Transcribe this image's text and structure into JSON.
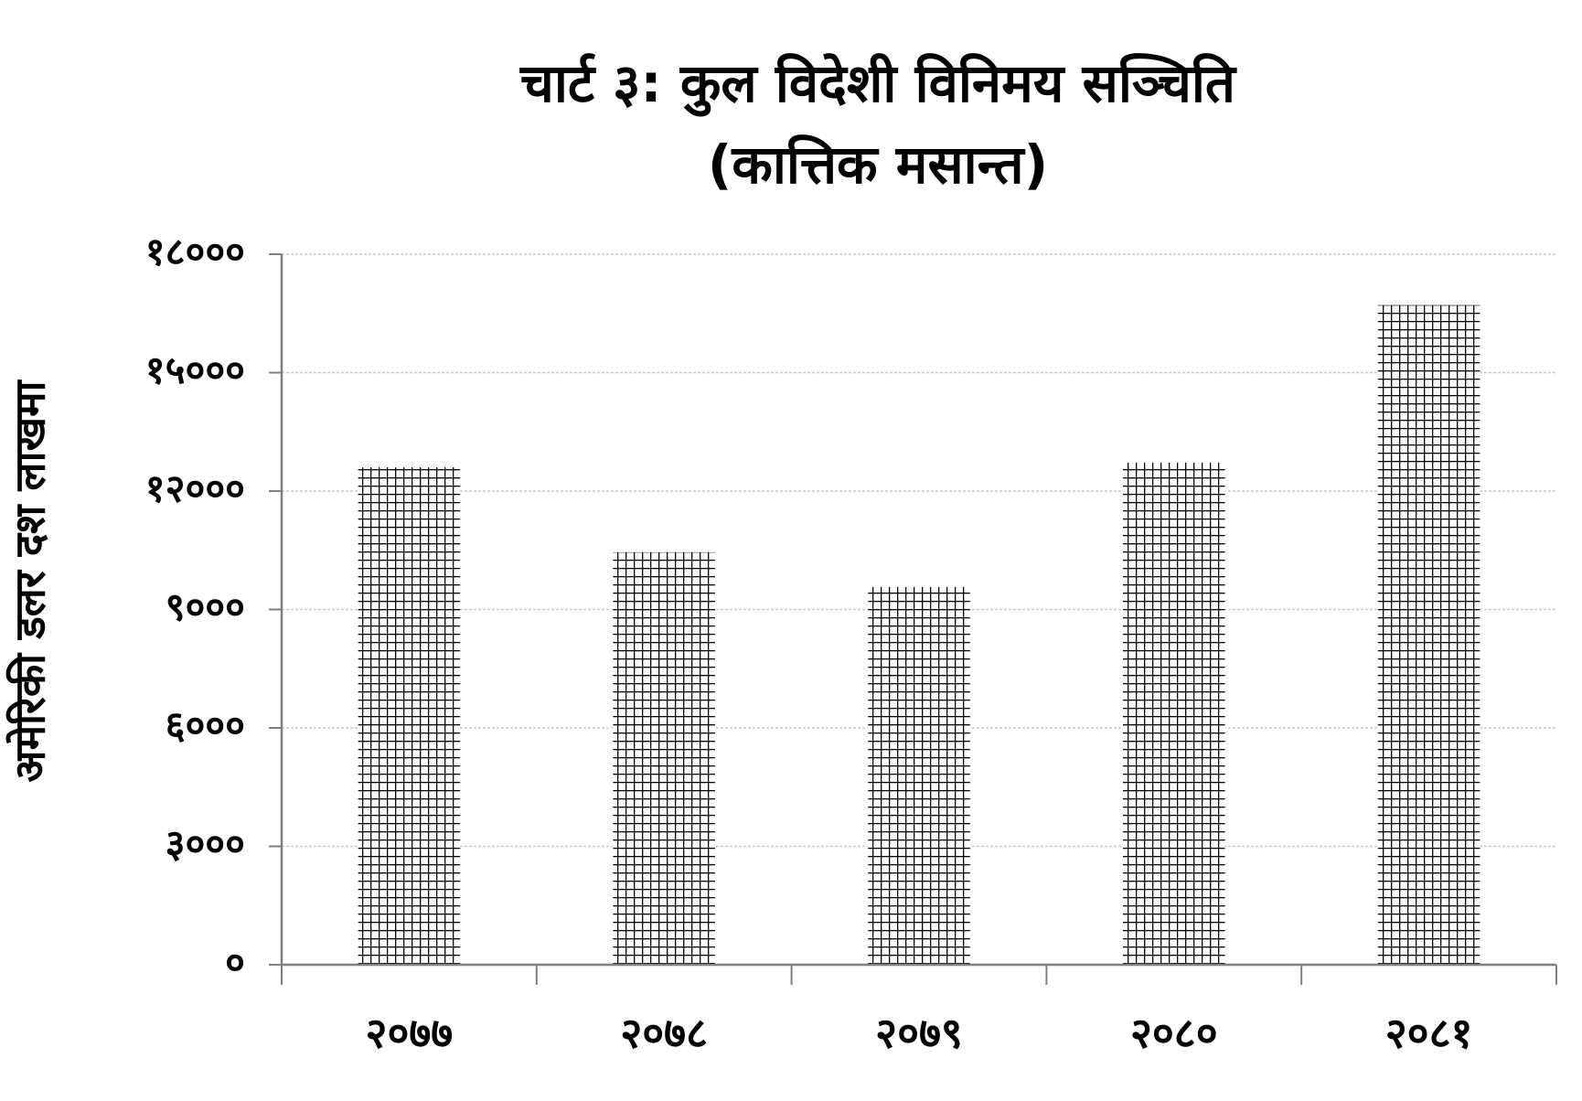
{
  "chart_data": {
    "type": "bar",
    "title": "चार्ट ३: कुल विदेशी विनिमय सञ्चिति",
    "subtitle": "(कात्तिक मसान्त)",
    "y_label": "अमेरिकी डलर दश लाखमा",
    "categories": [
      "२०७७",
      "२०७८",
      "२०७९",
      "२०८०",
      "२०८१"
    ],
    "values": [
      12600,
      10450,
      9570,
      12720,
      16710
    ],
    "color": "#000000",
    "ylim": [
      0,
      18000
    ],
    "yticks": [
      {
        "value": 0,
        "label": "०"
      },
      {
        "value": 3000,
        "label": "३०००"
      },
      {
        "value": 6000,
        "label": "६०००"
      },
      {
        "value": 9000,
        "label": "९०००"
      },
      {
        "value": 12000,
        "label": "१२०००"
      },
      {
        "value": 15000,
        "label": "१५०००"
      },
      {
        "value": 18000,
        "label": "१८०००"
      }
    ],
    "grid": true
  }
}
